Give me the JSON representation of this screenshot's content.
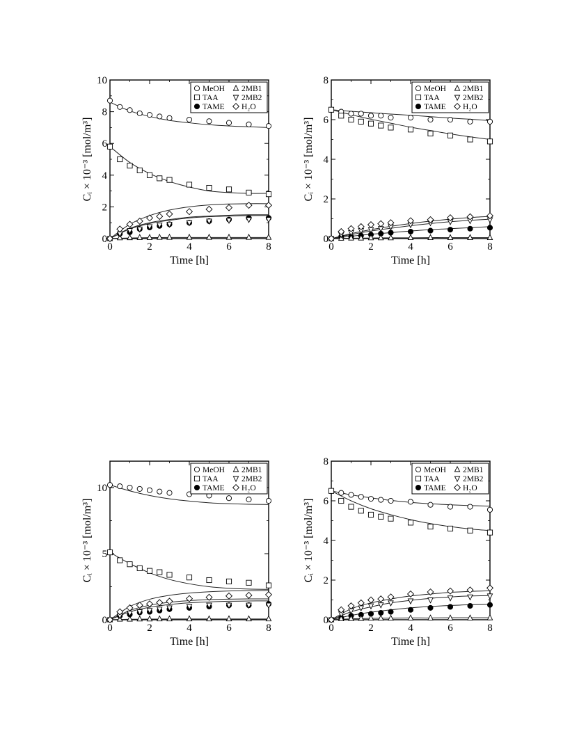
{
  "legend": [
    "MeOH",
    "2MB1",
    "TAA",
    "2MB2",
    "TAME",
    "H₂O"
  ],
  "axis_labels": {
    "xlabel": "Time [h]",
    "ylabel": "Cᵢ × 10⁻³ [mol/m³]"
  },
  "chart_data": [
    {
      "type": "scatter",
      "xlabel": "Time [h]",
      "ylabel": "Cᵢ × 10⁻³ [mol/m³]",
      "xlim": [
        0,
        8
      ],
      "ylim": [
        0,
        10
      ],
      "xticks": [
        "0",
        "2",
        "4",
        "6",
        "8"
      ],
      "yticks": [
        "0",
        "2",
        "4",
        "6",
        "8",
        "10"
      ],
      "legend_position": "top-right",
      "x": [
        0,
        0.5,
        1,
        1.5,
        2,
        2.5,
        3,
        4,
        5,
        6,
        7,
        8
      ],
      "series": [
        {
          "name": "MeOH",
          "marker": "circle-open",
          "values": [
            8.7,
            8.3,
            8.1,
            7.9,
            7.8,
            7.7,
            7.6,
            7.5,
            7.4,
            7.3,
            7.2,
            7.1
          ],
          "model_x": [
            0,
            1,
            2,
            3,
            4,
            5,
            6,
            7,
            8
          ],
          "model": [
            8.6,
            8.05,
            7.7,
            7.45,
            7.3,
            7.18,
            7.1,
            7.05,
            7.0
          ]
        },
        {
          "name": "TAA",
          "marker": "square-open",
          "values": [
            5.8,
            5.0,
            4.6,
            4.3,
            4.0,
            3.8,
            3.7,
            3.4,
            3.2,
            3.1,
            2.9,
            2.8
          ],
          "model_x": [
            0,
            1,
            2,
            3,
            4,
            5,
            6,
            7,
            8
          ],
          "model": [
            5.8,
            4.8,
            4.1,
            3.6,
            3.25,
            3.0,
            2.9,
            2.85,
            2.85
          ]
        },
        {
          "name": "TAME",
          "marker": "circle-filled",
          "values": [
            0.0,
            0.3,
            0.4,
            0.6,
            0.7,
            0.8,
            0.9,
            1.0,
            1.1,
            1.2,
            1.3,
            1.3
          ],
          "model_x": [
            0,
            1,
            2,
            3,
            4,
            5,
            6,
            7,
            8
          ],
          "model": [
            0.0,
            0.6,
            0.95,
            1.15,
            1.3,
            1.38,
            1.42,
            1.45,
            1.45
          ]
        },
        {
          "name": "2MB1",
          "marker": "triangle-up-open",
          "values": [
            0.0,
            0.05,
            0.06,
            0.07,
            0.07,
            0.08,
            0.08,
            0.08,
            0.08,
            0.08,
            0.08,
            0.08
          ],
          "model_x": [
            0,
            1,
            2,
            3,
            4,
            5,
            6,
            7,
            8
          ],
          "model": [
            0.0,
            0.04,
            0.06,
            0.07,
            0.07,
            0.07,
            0.07,
            0.07,
            0.07
          ]
        },
        {
          "name": "2MB2",
          "marker": "triangle-down-open",
          "values": [
            0.0,
            0.3,
            0.5,
            0.6,
            0.75,
            0.85,
            0.9,
            1.0,
            1.1,
            1.15,
            1.2,
            1.2
          ],
          "model_x": [
            0,
            1,
            2,
            3,
            4,
            5,
            6,
            7,
            8
          ],
          "model": [
            0.0,
            0.65,
            1.0,
            1.2,
            1.35,
            1.42,
            1.47,
            1.5,
            1.5
          ]
        },
        {
          "name": "H₂O",
          "marker": "diamond-open",
          "values": [
            0.0,
            0.6,
            0.9,
            1.1,
            1.3,
            1.4,
            1.55,
            1.7,
            1.85,
            1.95,
            2.1,
            2.1
          ],
          "model_x": [
            0,
            1,
            2,
            3,
            4,
            5,
            6,
            7,
            8
          ],
          "model": [
            0.0,
            0.9,
            1.45,
            1.8,
            2.0,
            2.12,
            2.18,
            2.2,
            2.2
          ]
        }
      ]
    },
    {
      "type": "scatter",
      "xlabel": "Time [h]",
      "ylabel": "Cᵢ × 10⁻³ [mol/m³]",
      "xlim": [
        0,
        8
      ],
      "ylim": [
        0,
        8
      ],
      "xticks": [
        "0",
        "2",
        "4",
        "6",
        "8"
      ],
      "yticks": [
        "0",
        "2",
        "4",
        "6",
        "8"
      ],
      "legend_position": "top-right",
      "x": [
        0,
        0.5,
        1,
        1.5,
        2,
        2.5,
        3,
        4,
        5,
        6,
        7,
        8
      ],
      "series": [
        {
          "name": "MeOH",
          "marker": "circle-open",
          "values": [
            6.5,
            6.4,
            6.3,
            6.3,
            6.2,
            6.2,
            6.1,
            6.1,
            6.0,
            6.0,
            5.9,
            5.9
          ],
          "model_x": [
            0,
            1,
            2,
            3,
            4,
            5,
            6,
            7,
            8
          ],
          "model": [
            6.5,
            6.42,
            6.35,
            6.28,
            6.22,
            6.15,
            6.08,
            6.02,
            5.95
          ]
        },
        {
          "name": "TAA",
          "marker": "square-open",
          "values": [
            6.5,
            6.2,
            6.0,
            5.9,
            5.8,
            5.7,
            5.6,
            5.5,
            5.3,
            5.2,
            5.0,
            4.9
          ],
          "model_x": [
            0,
            1,
            2,
            3,
            4,
            5,
            6,
            7,
            8
          ],
          "model": [
            6.5,
            6.25,
            6.02,
            5.82,
            5.62,
            5.45,
            5.28,
            5.13,
            5.0
          ]
        },
        {
          "name": "TAME",
          "marker": "circle-filled",
          "values": [
            0.0,
            0.1,
            0.1,
            0.15,
            0.2,
            0.25,
            0.3,
            0.35,
            0.4,
            0.45,
            0.5,
            0.55
          ],
          "model_x": [
            0,
            1,
            2,
            3,
            4,
            5,
            6,
            7,
            8
          ],
          "model": [
            0.0,
            0.12,
            0.22,
            0.3,
            0.38,
            0.45,
            0.5,
            0.55,
            0.6
          ]
        },
        {
          "name": "2MB1",
          "marker": "triangle-up-open",
          "values": [
            0.0,
            0.02,
            0.03,
            0.03,
            0.04,
            0.04,
            0.04,
            0.05,
            0.05,
            0.05,
            0.05,
            0.05
          ],
          "model_x": [
            0,
            1,
            2,
            3,
            4,
            5,
            6,
            7,
            8
          ],
          "model": [
            0.0,
            0.02,
            0.03,
            0.04,
            0.04,
            0.05,
            0.05,
            0.05,
            0.05
          ]
        },
        {
          "name": "2MB2",
          "marker": "triangle-down-open",
          "values": [
            0.0,
            0.2,
            0.3,
            0.4,
            0.45,
            0.5,
            0.6,
            0.7,
            0.8,
            0.85,
            0.9,
            0.95
          ],
          "model_x": [
            0,
            1,
            2,
            3,
            4,
            5,
            6,
            7,
            8
          ],
          "model": [
            0.0,
            0.2,
            0.38,
            0.52,
            0.65,
            0.76,
            0.85,
            0.92,
            0.98
          ]
        },
        {
          "name": "H₂O",
          "marker": "diamond-open",
          "values": [
            0.0,
            0.35,
            0.5,
            0.6,
            0.7,
            0.75,
            0.8,
            0.9,
            0.95,
            1.05,
            1.1,
            1.15
          ],
          "model_x": [
            0,
            1,
            2,
            3,
            4,
            5,
            6,
            7,
            8
          ],
          "model": [
            0.0,
            0.25,
            0.45,
            0.62,
            0.76,
            0.88,
            0.98,
            1.06,
            1.12
          ]
        }
      ]
    },
    {
      "type": "scatter",
      "xlabel": "Time [h]",
      "ylabel": "Cᵢ × 10⁻³ [mol/m³]",
      "xlim": [
        0,
        8
      ],
      "ylim": [
        0,
        12
      ],
      "xticks": [
        "0",
        "2",
        "4",
        "6",
        "8"
      ],
      "yticks": [
        "0",
        "5",
        "10"
      ],
      "legend_position": "top-right",
      "x": [
        0,
        0.5,
        1,
        1.5,
        2,
        2.5,
        3,
        4,
        5,
        6,
        7,
        8
      ],
      "series": [
        {
          "name": "MeOH",
          "marker": "circle-open",
          "values": [
            10.2,
            10.1,
            10.0,
            9.9,
            9.8,
            9.7,
            9.6,
            9.5,
            9.4,
            9.2,
            9.1,
            9.0
          ],
          "model_x": [
            0,
            1,
            2,
            3,
            4,
            5,
            6,
            7,
            8
          ],
          "model": [
            10.2,
            9.75,
            9.4,
            9.15,
            8.98,
            8.85,
            8.78,
            8.74,
            8.72
          ]
        },
        {
          "name": "TAA",
          "marker": "square-open",
          "values": [
            5.1,
            4.5,
            4.2,
            3.9,
            3.7,
            3.6,
            3.4,
            3.2,
            3.0,
            2.9,
            2.8,
            2.6
          ],
          "model_x": [
            0,
            1,
            2,
            3,
            4,
            5,
            6,
            7,
            8
          ],
          "model": [
            5.1,
            4.25,
            3.55,
            3.05,
            2.72,
            2.5,
            2.38,
            2.32,
            2.3
          ]
        },
        {
          "name": "TAME",
          "marker": "circle-filled",
          "values": [
            0.0,
            0.3,
            0.4,
            0.55,
            0.6,
            0.7,
            0.8,
            0.9,
            1.0,
            1.1,
            1.1,
            1.2
          ],
          "model_x": [
            0,
            1,
            2,
            3,
            4,
            5,
            6,
            7,
            8
          ],
          "model": [
            0.0,
            0.6,
            0.95,
            1.15,
            1.28,
            1.35,
            1.4,
            1.42,
            1.43
          ]
        },
        {
          "name": "2MB1",
          "marker": "triangle-up-open",
          "values": [
            0.0,
            0.05,
            0.05,
            0.06,
            0.06,
            0.07,
            0.07,
            0.07,
            0.07,
            0.07,
            0.07,
            0.07
          ],
          "model_x": [
            0,
            1,
            2,
            3,
            4,
            5,
            6,
            7,
            8
          ],
          "model": [
            0.0,
            0.04,
            0.05,
            0.06,
            0.06,
            0.06,
            0.06,
            0.06,
            0.06
          ]
        },
        {
          "name": "2MB2",
          "marker": "triangle-down-open",
          "values": [
            0.0,
            0.3,
            0.5,
            0.6,
            0.7,
            0.8,
            0.9,
            1.0,
            1.1,
            1.1,
            1.1,
            1.1
          ],
          "model_x": [
            0,
            1,
            2,
            3,
            4,
            5,
            6,
            7,
            8
          ],
          "model": [
            0.0,
            0.7,
            1.1,
            1.32,
            1.45,
            1.52,
            1.56,
            1.58,
            1.58
          ]
        },
        {
          "name": "H₂O",
          "marker": "diamond-open",
          "values": [
            0.0,
            0.6,
            0.9,
            1.1,
            1.2,
            1.3,
            1.4,
            1.6,
            1.7,
            1.8,
            1.85,
            1.9
          ],
          "model_x": [
            0,
            1,
            2,
            3,
            4,
            5,
            6,
            7,
            8
          ],
          "model": [
            0.0,
            1.0,
            1.55,
            1.85,
            2.02,
            2.12,
            2.18,
            2.2,
            2.21
          ]
        }
      ]
    },
    {
      "type": "scatter",
      "xlabel": "Time [h]",
      "ylabel": "Cᵢ × 10⁻³ [mol/m³]",
      "xlim": [
        0,
        8
      ],
      "ylim": [
        0,
        8
      ],
      "xticks": [
        "0",
        "2",
        "4",
        "6",
        "8"
      ],
      "yticks": [
        "0",
        "2",
        "4",
        "6",
        "8"
      ],
      "legend_position": "top-right",
      "x": [
        0,
        0.5,
        1,
        1.5,
        2,
        2.5,
        3,
        4,
        5,
        6,
        7,
        8
      ],
      "series": [
        {
          "name": "MeOH",
          "marker": "circle-open",
          "values": [
            6.5,
            6.4,
            6.3,
            6.2,
            6.1,
            6.05,
            6.0,
            5.95,
            5.8,
            5.7,
            5.7,
            5.55
          ],
          "model_x": [
            0,
            1,
            2,
            3,
            4,
            5,
            6,
            7,
            8
          ],
          "model": [
            6.5,
            6.3,
            6.15,
            6.02,
            5.92,
            5.85,
            5.8,
            5.76,
            5.73
          ]
        },
        {
          "name": "TAA",
          "marker": "square-open",
          "values": [
            6.5,
            6.0,
            5.7,
            5.5,
            5.3,
            5.2,
            5.1,
            4.9,
            4.7,
            4.6,
            4.5,
            4.4
          ],
          "model_x": [
            0,
            1,
            2,
            3,
            4,
            5,
            6,
            7,
            8
          ],
          "model": [
            6.5,
            6.0,
            5.6,
            5.3,
            5.05,
            4.85,
            4.7,
            4.58,
            4.5
          ]
        },
        {
          "name": "TAME",
          "marker": "circle-filled",
          "values": [
            0.0,
            0.1,
            0.2,
            0.25,
            0.3,
            0.35,
            0.4,
            0.5,
            0.6,
            0.65,
            0.7,
            0.75
          ],
          "model_x": [
            0,
            1,
            2,
            3,
            4,
            5,
            6,
            7,
            8
          ],
          "model": [
            0.0,
            0.22,
            0.38,
            0.5,
            0.6,
            0.67,
            0.72,
            0.76,
            0.78
          ]
        },
        {
          "name": "2MB1",
          "marker": "triangle-up-open",
          "values": [
            0.0,
            0.05,
            0.06,
            0.07,
            0.08,
            0.08,
            0.08,
            0.09,
            0.09,
            0.09,
            0.09,
            0.1
          ],
          "model_x": [
            0,
            1,
            2,
            3,
            4,
            5,
            6,
            7,
            8
          ],
          "model": [
            0.0,
            0.05,
            0.07,
            0.08,
            0.09,
            0.09,
            0.1,
            0.1,
            0.1
          ]
        },
        {
          "name": "2MB2",
          "marker": "triangle-down-open",
          "values": [
            0.0,
            0.3,
            0.45,
            0.6,
            0.7,
            0.75,
            0.85,
            0.95,
            1.0,
            1.1,
            1.15,
            1.2
          ],
          "model_x": [
            0,
            1,
            2,
            3,
            4,
            5,
            6,
            7,
            8
          ],
          "model": [
            0.0,
            0.4,
            0.65,
            0.85,
            0.98,
            1.08,
            1.15,
            1.2,
            1.22
          ]
        },
        {
          "name": "H₂O",
          "marker": "diamond-open",
          "values": [
            0.0,
            0.5,
            0.7,
            0.85,
            1.0,
            1.05,
            1.15,
            1.3,
            1.4,
            1.45,
            1.5,
            1.6
          ],
          "model_x": [
            0,
            1,
            2,
            3,
            4,
            5,
            6,
            7,
            8
          ],
          "model": [
            0.0,
            0.55,
            0.85,
            1.05,
            1.2,
            1.3,
            1.38,
            1.43,
            1.46
          ]
        }
      ]
    }
  ]
}
